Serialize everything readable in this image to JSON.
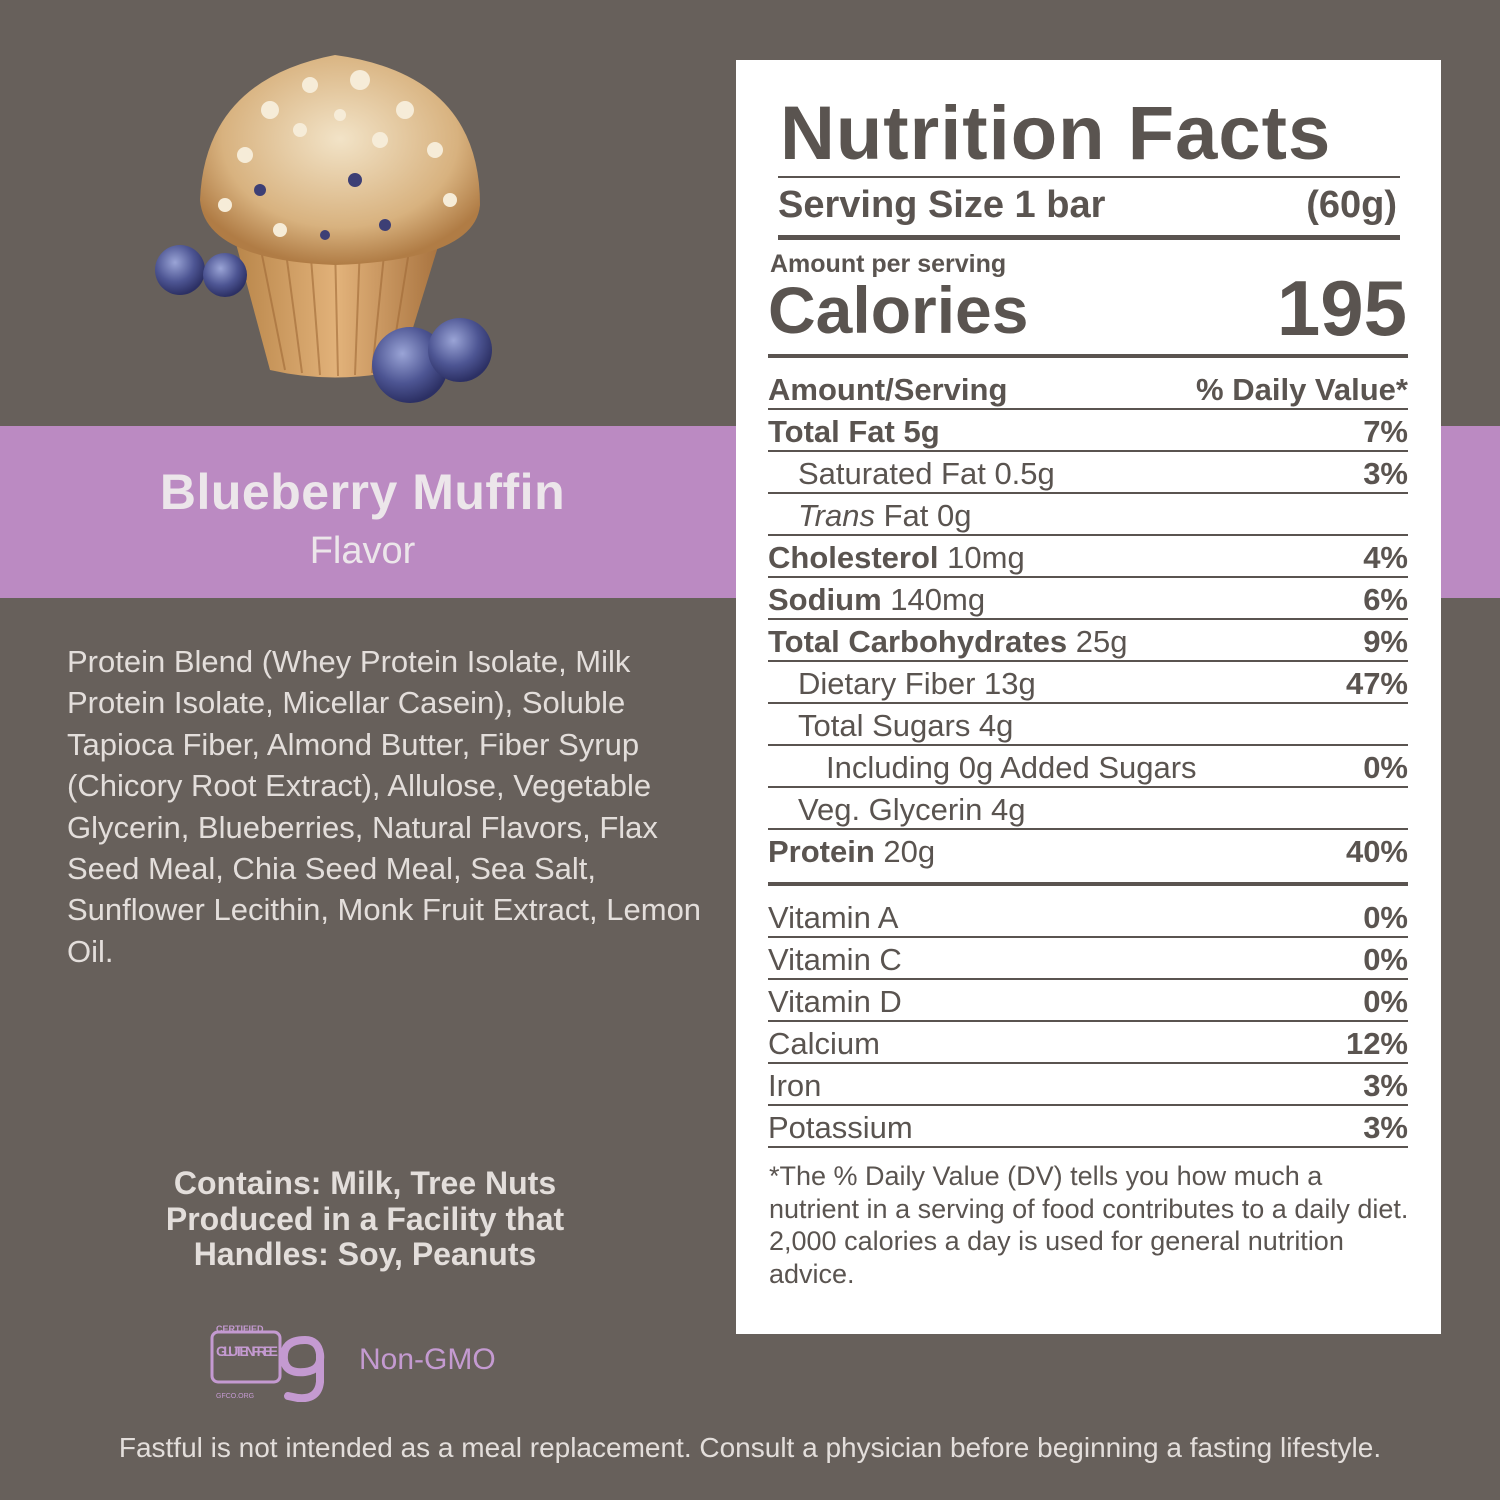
{
  "product": {
    "flavor_name": "Blueberry Muffin",
    "flavor_subtitle": "Flavor",
    "ingredients": "Protein Blend (Whey Protein Isolate, Milk Protein Isolate, Micellar Casein), Soluble Tapioca Fiber, Almond Butter, Fiber Syrup (Chicory Root Extract), Allulose, Vegetable Glycerin, Blueberries, Natural Flavors, Flax Seed Meal, Chia Seed Meal, Sea Salt, Sunflower Lecithin, Monk Fruit Extract, Lemon Oil.",
    "allergens": [
      "Contains: Milk, Tree Nuts",
      "Produced in a Facility that",
      "Handles: Soy, Peanuts"
    ],
    "badges": {
      "gluten_free_top": "CERTIFIED",
      "gluten_free_main": "GLUTEN FREE",
      "gluten_free_org": "GFCO.ORG",
      "non_gmo": "Non-GMO"
    },
    "disclaimer": "Fastful is not intended as a meal replacement. Consult a physician before beginning a fasting lifestyle."
  },
  "nutrition": {
    "title": "Nutrition Facts",
    "serving_size_label": "Serving Size 1 bar",
    "serving_size_value": "(60g)",
    "amount_per_serving": "Amount per serving",
    "calories_label": "Calories",
    "calories_value": "195",
    "header_left": "Amount/Serving",
    "header_right": "% Daily Value*",
    "rows": [
      {
        "name": "Total Fat",
        "amount": " 5g",
        "dv": "7%"
      },
      {
        "name": "Saturated Fat 0.5g",
        "dv": "3%"
      },
      {
        "name": "Trans",
        "amount": " Fat 0g",
        "dv": ""
      },
      {
        "name": "Cholesterol",
        "amount": " 10mg",
        "dv": "4%"
      },
      {
        "name": "Sodium",
        "amount": " 140mg",
        "dv": "6%"
      },
      {
        "name": "Total Carbohydrates",
        "amount": " 25g",
        "dv": "9%"
      },
      {
        "name": "Dietary Fiber 13g",
        "dv": "47%"
      },
      {
        "name": "Total Sugars 4g",
        "dv": ""
      },
      {
        "name": "Including 0g Added Sugars",
        "dv": "0%"
      },
      {
        "name": "Veg. Glycerin 4g",
        "dv": ""
      },
      {
        "name": "Protein",
        "amount": " 20g",
        "dv": "40%"
      }
    ],
    "vitamins": [
      {
        "name": "Vitamin A",
        "dv": "0%"
      },
      {
        "name": "Vitamin C",
        "dv": "0%"
      },
      {
        "name": "Vitamin D",
        "dv": "0%"
      },
      {
        "name": "Calcium",
        "dv": "12%"
      },
      {
        "name": "Iron",
        "dv": "3%"
      },
      {
        "name": "Potassium",
        "dv": "3%"
      }
    ],
    "footnote": "*The % Daily Value (DV) tells you how much a nutrient in a serving of food contributes to a daily diet. 2,000 calories a day is used for general nutrition advice."
  },
  "colors": {
    "background": "#67605b",
    "accent_band": "#bb8ac2",
    "panel": "#ffffff",
    "panel_text": "#5a5450",
    "badge_purple": "#c49ad1"
  },
  "icons": [
    "blueberry-muffin-illustration",
    "gluten-free-certified-icon"
  ]
}
